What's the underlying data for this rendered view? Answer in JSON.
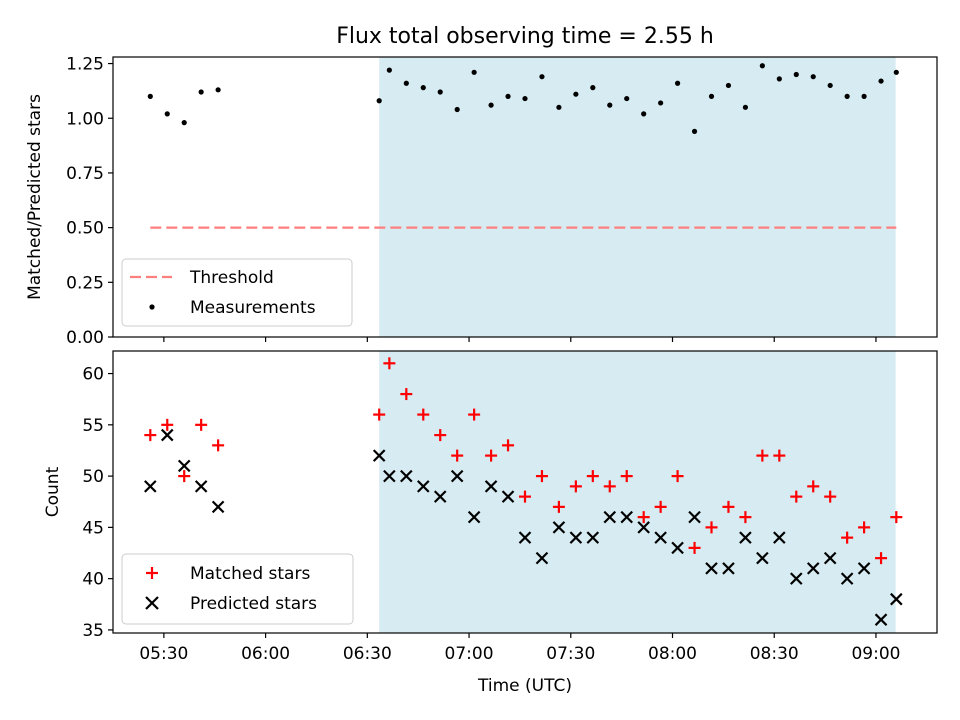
{
  "title": "Flux total observing time = 2.55 h",
  "xlabel": "Time (UTC)",
  "x_ticks": [
    "05:30",
    "06:00",
    "06:30",
    "07:00",
    "07:30",
    "08:00",
    "08:30",
    "09:00"
  ],
  "x_tick_minutes": [
    330,
    360,
    390,
    420,
    450,
    480,
    510,
    540
  ],
  "x_range_minutes": [
    315,
    558
  ],
  "shaded_span_minutes": [
    393.5,
    545.8
  ],
  "colors": {
    "shade": "#add8e6",
    "threshold": "#ff7f7f",
    "matched": "#ff0000",
    "predicted": "#000000"
  },
  "chart_data": [
    {
      "type": "scatter",
      "panel": "top",
      "ylabel": "Matched/Predicted stars",
      "ylim": [
        0,
        1.28
      ],
      "y_ticks": [
        "0.00",
        "0.25",
        "0.50",
        "0.75",
        "1.00",
        "1.25"
      ],
      "y_tick_values": [
        0,
        0.25,
        0.5,
        0.75,
        1.0,
        1.25
      ],
      "threshold": {
        "name": "Threshold",
        "value": 0.5,
        "x_range": [
          326,
          546
        ]
      },
      "legend": [
        "Threshold",
        "Measurements"
      ],
      "series": [
        {
          "name": "Measurements",
          "x": [
            326,
            331,
            336,
            341,
            346,
            393.5,
            396.5,
            401.5,
            406.5,
            411.5,
            416.5,
            421.5,
            426.5,
            431.5,
            436.5,
            441.5,
            446.5,
            451.5,
            456.5,
            461.5,
            466.5,
            471.5,
            476.5,
            481.5,
            486.5,
            491.5,
            496.5,
            501.5,
            506.5,
            511.5,
            516.5,
            521.5,
            526.5,
            531.5,
            536.5,
            541.5,
            546
          ],
          "y": [
            1.1,
            1.02,
            0.98,
            1.12,
            1.13,
            1.08,
            1.22,
            1.16,
            1.14,
            1.12,
            1.04,
            1.21,
            1.06,
            1.1,
            1.09,
            1.19,
            1.05,
            1.11,
            1.14,
            1.06,
            1.09,
            1.02,
            1.07,
            1.16,
            0.94,
            1.1,
            1.15,
            1.05,
            1.24,
            1.18,
            1.2,
            1.19,
            1.15,
            1.1,
            1.1,
            1.17,
            1.21
          ]
        }
      ]
    },
    {
      "type": "scatter",
      "panel": "bottom",
      "ylabel": "Count",
      "ylim": [
        34.7,
        62.2
      ],
      "y_ticks": [
        "35",
        "40",
        "45",
        "50",
        "55",
        "60"
      ],
      "y_tick_values": [
        35,
        40,
        45,
        50,
        55,
        60
      ],
      "legend": [
        "Matched stars",
        "Predicted stars"
      ],
      "series": [
        {
          "name": "Matched stars",
          "marker": "+",
          "x": [
            326,
            331,
            336,
            341,
            346,
            393.5,
            396.5,
            401.5,
            406.5,
            411.5,
            416.5,
            421.5,
            426.5,
            431.5,
            436.5,
            441.5,
            446.5,
            451.5,
            456.5,
            461.5,
            466.5,
            471.5,
            476.5,
            481.5,
            486.5,
            491.5,
            496.5,
            501.5,
            506.5,
            511.5,
            516.5,
            521.5,
            526.5,
            531.5,
            536.5,
            541.5,
            546
          ],
          "y": [
            54,
            55,
            50,
            55,
            53,
            56,
            61,
            58,
            56,
            54,
            52,
            56,
            52,
            53,
            48,
            50,
            47,
            49,
            50,
            49,
            50,
            46,
            47,
            50,
            43,
            45,
            47,
            46,
            52,
            52,
            48,
            49,
            48,
            44,
            45,
            42,
            46
          ]
        },
        {
          "name": "Predicted stars",
          "marker": "x",
          "x": [
            326,
            331,
            336,
            341,
            346,
            393.5,
            396.5,
            401.5,
            406.5,
            411.5,
            416.5,
            421.5,
            426.5,
            431.5,
            436.5,
            441.5,
            446.5,
            451.5,
            456.5,
            461.5,
            466.5,
            471.5,
            476.5,
            481.5,
            486.5,
            491.5,
            496.5,
            501.5,
            506.5,
            511.5,
            516.5,
            521.5,
            526.5,
            531.5,
            536.5,
            541.5,
            546
          ],
          "y": [
            49,
            54,
            51,
            49,
            47,
            52,
            50,
            50,
            49,
            48,
            50,
            46,
            49,
            48,
            44,
            42,
            45,
            44,
            44,
            46,
            46,
            45,
            44,
            43,
            46,
            41,
            41,
            44,
            42,
            44,
            40,
            41,
            42,
            40,
            41,
            36,
            38
          ]
        }
      ]
    }
  ]
}
